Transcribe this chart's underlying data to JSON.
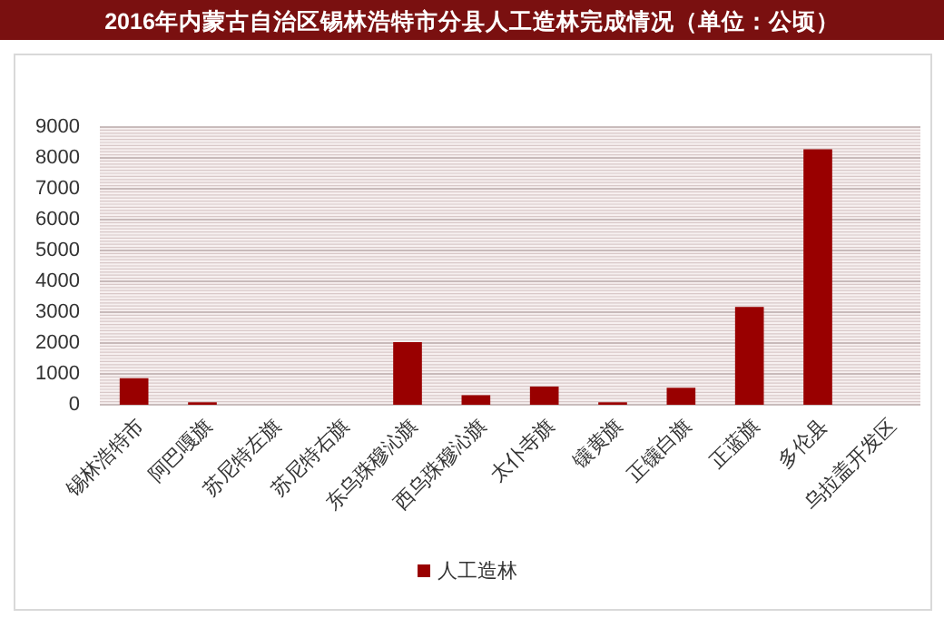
{
  "chart_data": {
    "type": "bar",
    "title": "2016年内蒙古自治区锡林浩特市分县人工造林完成情况（单位：公顷）",
    "categories": [
      "锡林浩特市",
      "阿巴嘎旗",
      "苏尼特左旗",
      "苏尼特右旗",
      "东乌珠穆沁旗",
      "西乌珠穆沁旗",
      "太仆寺旗",
      "镶黄旗",
      "正镶白旗",
      "正蓝旗",
      "多伦县",
      "乌拉盖开发区"
    ],
    "series": [
      {
        "name": "人工造林",
        "color": "#990000",
        "values": [
          860,
          80,
          0,
          0,
          2030,
          310,
          590,
          80,
          550,
          3170,
          8280,
          0
        ]
      }
    ],
    "ylim": [
      0,
      9000
    ],
    "yticks": [
      0,
      1000,
      2000,
      3000,
      4000,
      5000,
      6000,
      7000,
      8000,
      9000
    ],
    "grid": "y",
    "legend": "bottom"
  }
}
